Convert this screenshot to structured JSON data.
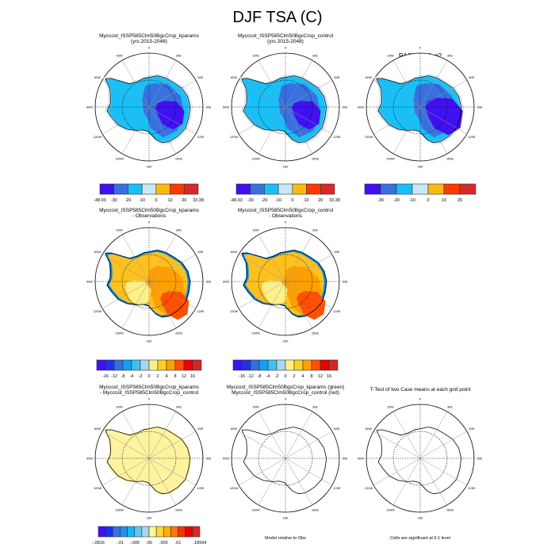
{
  "title": "DJF TSA (C)",
  "chart_data": {
    "type": "heatmap",
    "title": "DJF TSA (C)",
    "projection": "south-polar-stereographic",
    "meridian_labels": [
      "0",
      "30E",
      "60E",
      "90E",
      "120E",
      "150E",
      "180",
      "150W",
      "120W",
      "90W",
      "60W",
      "30W"
    ],
    "panels": [
      {
        "id": "p1",
        "row": 0,
        "col": 0,
        "title": [
          "Myccost_ISSP585Clm50BgcCrop_kparams",
          "(yrs 2015-2048)"
        ],
        "style": "abs",
        "colorbar": {
          "colors": [
            "#4010f0",
            "#3870e0",
            "#18c0f8",
            "#c8e8f8",
            "#ffb810",
            "#ff3a00",
            "#d82828"
          ],
          "labels": [
            "-48.93",
            "-30",
            "-20",
            "-10",
            "0",
            "10",
            "20",
            "33.38"
          ],
          "edge_labels": true
        }
      },
      {
        "id": "p2",
        "row": 0,
        "col": 1,
        "title": [
          "Myccost_ISSP585Clm50BgcCrop_control",
          "(yrs 2015-2048)"
        ],
        "style": "abs",
        "colorbar": {
          "colors": [
            "#4010f0",
            "#3870e0",
            "#18c0f8",
            "#c8e8f8",
            "#ffb810",
            "#ff3a00",
            "#d82828"
          ],
          "labels": [
            "-48.93",
            "-30",
            "-20",
            "-10",
            "0",
            "10",
            "20",
            "33.38"
          ],
          "edge_labels": true
        }
      },
      {
        "id": "p3",
        "row": 0,
        "col": 2,
        "title": [
          "RACMO2.3_p2"
        ],
        "style": "abs3",
        "colorbar": {
          "colors": [
            "#4010f0",
            "#3870e0",
            "#18c0f8",
            "#c8e8f8",
            "#ffb810",
            "#ff3a00",
            "#d82828"
          ],
          "labels": [
            "-30",
            "-20",
            "-10",
            "0",
            "10",
            "20"
          ],
          "edge_labels": false
        }
      },
      {
        "id": "p4",
        "row": 1,
        "col": 0,
        "title": [
          "Myccost_ISSP585Clm50BgcCrop_kparams",
          "- Observations"
        ],
        "style": "diff",
        "colorbar": {
          "colors": [
            "#4010f0",
            "#2030e8",
            "#3070e0",
            "#10a0f0",
            "#40c0f0",
            "#a8d8f0",
            "#fff08a",
            "#ffd020",
            "#ffa000",
            "#ff5000",
            "#f00000",
            "#d02828"
          ],
          "labels": [
            "-16",
            "-12",
            "-8",
            "-4",
            "-2",
            "0",
            "2",
            "4",
            "8",
            "12",
            "16"
          ],
          "edge_labels": false
        }
      },
      {
        "id": "p5",
        "row": 1,
        "col": 1,
        "title": [
          "Myccost_ISSP585Clm50BgcCrop_control",
          "- Observations"
        ],
        "style": "diff",
        "colorbar": {
          "colors": [
            "#4010f0",
            "#2030e8",
            "#3070e0",
            "#10a0f0",
            "#40c0f0",
            "#a8d8f0",
            "#fff08a",
            "#ffd020",
            "#ffa000",
            "#ff5000",
            "#f00000",
            "#d02828"
          ],
          "labels": [
            "-16",
            "-12",
            "-8",
            "-4",
            "-2",
            "0",
            "2",
            "4",
            "8",
            "12",
            "16"
          ],
          "edge_labels": false
        }
      },
      {
        "id": "p6",
        "row": 2,
        "col": 0,
        "title": [
          "Myccost_ISSP585Clm50BgcCrop_kparams",
          "- Myccost_ISSP585Clm50BgcCrop_control"
        ],
        "style": "pale",
        "colorbar": {
          "colors": [
            "#4010f0",
            "#1830f0",
            "#3870e0",
            "#2090f0",
            "#10b8f8",
            "#60c8f0",
            "#a8d8f0",
            "#fff898",
            "#ffd830",
            "#ffb000",
            "#ff7800",
            "#ff3000",
            "#e80000",
            "#d82828"
          ],
          "labels": [
            {
              "t": "-.0816",
              "i": 0
            },
            {
              "t": "-.01",
              "i": 3
            },
            {
              "t": "-.005",
              "i": 5
            },
            {
              "t": ".00",
              "i": 7
            },
            {
              "t": ".005",
              "i": 9
            },
            {
              "t": ".01",
              "i": 11
            },
            {
              "t": ".18594",
              "i": 14
            }
          ],
          "edge_labels": true
        }
      },
      {
        "id": "p7",
        "row": 2,
        "col": 1,
        "title": [
          "Myccost_ISSP585Clm50BgcCrop_kparams (green)",
          "Myccost_ISSP585Clm50BgcCrop_control (red)"
        ],
        "style": "outline",
        "footer": "Model relative to Obs"
      },
      {
        "id": "p8",
        "row": 2,
        "col": 2,
        "title": [
          "T-Test of two Case means at each grid point"
        ],
        "style": "outline",
        "footer": "Cells are significant at 0.1 level"
      }
    ]
  }
}
